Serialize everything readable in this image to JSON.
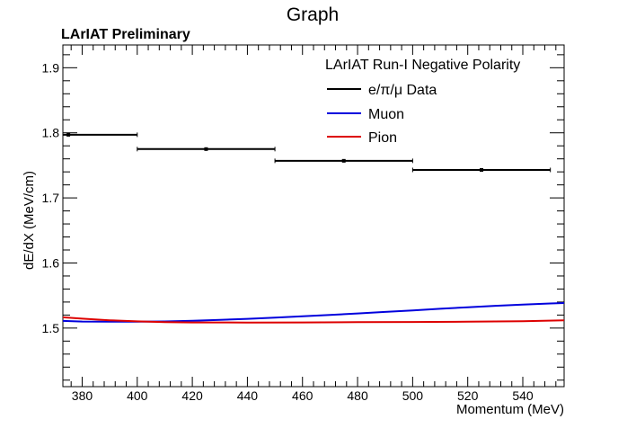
{
  "chart_data": {
    "type": "line",
    "title": "Graph",
    "subtitle": "LArIAT Preliminary",
    "xlabel": "Momentum (MeV)",
    "ylabel": "dE/dX (MeV/cm)",
    "xlim": [
      373,
      555
    ],
    "ylim": [
      1.41,
      1.935
    ],
    "x_ticks": [
      380,
      400,
      420,
      440,
      460,
      480,
      500,
      520,
      540
    ],
    "y_ticks": [
      1.5,
      1.6,
      1.7,
      1.8,
      1.9
    ],
    "y_tick_labels": [
      "1.5",
      "1.6",
      "1.7",
      "1.8",
      "1.9"
    ],
    "legend": {
      "title": "LArIAT Run-I Negative Polarity",
      "placement": "top-right",
      "entries": [
        "e/π/μ Data",
        "Muon",
        "Pion"
      ]
    },
    "data_points": {
      "name": "e/π/μ Data",
      "color": "#000000",
      "x": [
        375,
        425,
        475,
        525
      ],
      "xerr": [
        25,
        25,
        25,
        25
      ],
      "y": [
        1.797,
        1.775,
        1.757,
        1.743
      ]
    },
    "series": [
      {
        "name": "Muon",
        "color": "#0000dd",
        "x": [
          373,
          380,
          390,
          400,
          410,
          420,
          430,
          440,
          450,
          460,
          470,
          480,
          490,
          500,
          510,
          520,
          530,
          540,
          550,
          555
        ],
        "values": [
          1.511,
          1.51,
          1.5098,
          1.5098,
          1.5102,
          1.5112,
          1.5126,
          1.5142,
          1.516,
          1.518,
          1.5202,
          1.5224,
          1.5248,
          1.5272,
          1.5296,
          1.532,
          1.5342,
          1.5362,
          1.5378,
          1.5385
        ]
      },
      {
        "name": "Pion",
        "color": "#dd0000",
        "x": [
          373,
          380,
          390,
          400,
          410,
          420,
          440,
          460,
          480,
          500,
          520,
          540,
          555
        ],
        "values": [
          1.5165,
          1.5145,
          1.512,
          1.5103,
          1.5092,
          1.5087,
          1.5085,
          1.5087,
          1.509,
          1.5093,
          1.5098,
          1.5105,
          1.512
        ]
      }
    ]
  }
}
